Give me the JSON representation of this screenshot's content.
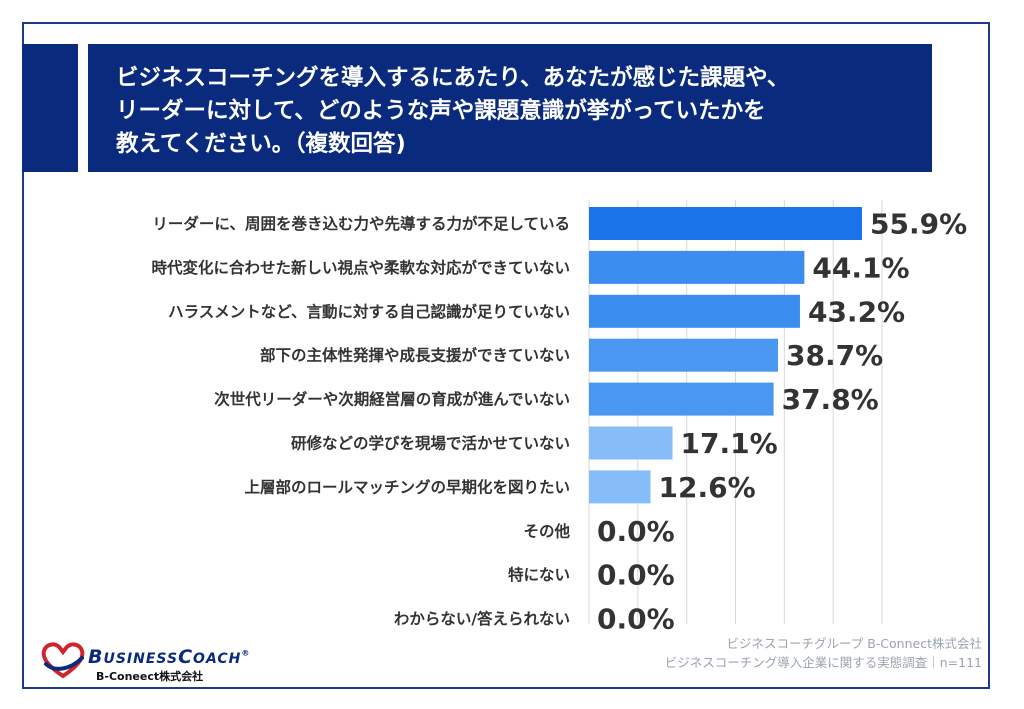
{
  "title": {
    "lines": [
      "ビジネスコーチングを導入するにあたり、あなたが感じた課題や、",
      "リーダーに対して、どのような声や課題意識が挙がっていたかを",
      "教えてください。（複数回答)"
    ]
  },
  "chart_data": {
    "type": "bar",
    "orientation": "horizontal",
    "categories": [
      "リーダーに、周囲を巻き込む力や先導する力が不足している",
      "時代変化に合わせた新しい視点や柔軟な対応ができていない",
      "ハラスメントなど、言動に対する自己認識が足りていない",
      "部下の主体性発揮や成長支援ができていない",
      "次世代リーダーや次期経営層の育成が進んでいない",
      "研修などの学びを現場で活かせていない",
      "上層部のロールマッチングの早期化を図りたい",
      "その他",
      "特にない",
      "わからない/答えられない"
    ],
    "values": [
      55.9,
      44.1,
      43.2,
      38.7,
      37.8,
      17.1,
      12.6,
      0.0,
      0.0,
      0.0
    ],
    "value_labels": [
      "55.9%",
      "44.1%",
      "43.2%",
      "38.7%",
      "37.8%",
      "17.1%",
      "12.6%",
      "0.0%",
      "0.0%",
      "0.0%"
    ],
    "bar_colors": [
      "#1a73e8",
      "#3b8ef0",
      "#3b8ef0",
      "#4a97f2",
      "#4a97f2",
      "#86bdf8",
      "#86bdf8",
      "#86bdf8",
      "#86bdf8",
      "#86bdf8"
    ],
    "xlim": [
      0,
      60
    ],
    "grid": true,
    "title": "",
    "xlabel": "",
    "ylabel": ""
  },
  "source": {
    "line1": "ビジネスコーチグループ B-Connect株式会社",
    "line2": "ビジネスコーチング導入企業に関する実態調査｜n=111"
  },
  "logo": {
    "brand_big1": "B",
    "brand_small1": "USINESS",
    "brand_big2": "C",
    "brand_small2": "OACH",
    "reg": "®",
    "sub": "B-Coneect株式会社"
  },
  "colors": {
    "title_bg": "#0a2a7d",
    "frame": "#1e3a8a",
    "gridline": "#d9d9d9"
  }
}
